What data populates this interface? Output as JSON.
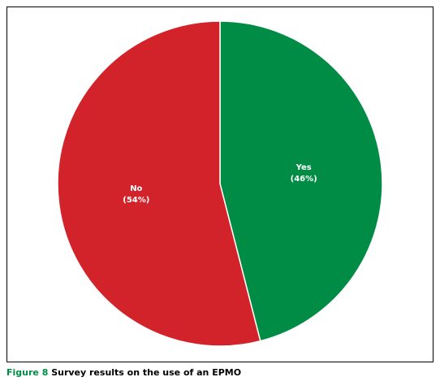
{
  "chart_data": {
    "type": "pie",
    "figure_label": "Figure 8",
    "title": "Survey results on the use of an EPMO",
    "categories": [
      "Yes",
      "No"
    ],
    "values": [
      46,
      54
    ],
    "value_labels": [
      "(46%)",
      "(54%)"
    ],
    "colors": [
      "#008c44",
      "#d2232a"
    ]
  }
}
